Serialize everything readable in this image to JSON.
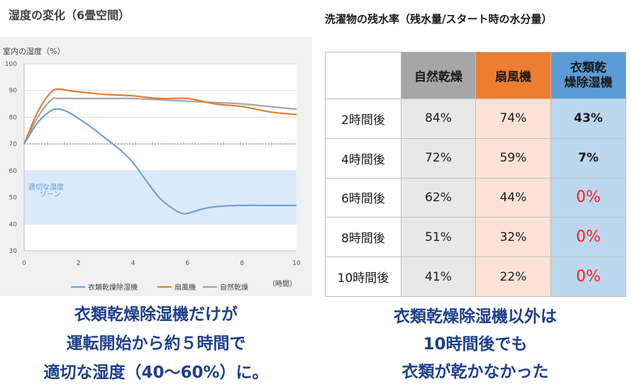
{
  "left_title": "湿度の変化（6畳空間）",
  "chart_data": {
    "type": "line",
    "ylabel": "室内の湿度（%）",
    "xlabel": "（時間）",
    "xlim": [
      0,
      10
    ],
    "ylim": [
      30,
      100
    ],
    "xticks": [
      0,
      2,
      4,
      6,
      8,
      10
    ],
    "yticks": [
      30,
      40,
      50,
      60,
      70,
      80,
      90,
      100
    ],
    "reference_line": 70,
    "band": {
      "from": 40,
      "to": 60,
      "label_line1": "適切な湿度",
      "label_line2": "ゾーン"
    },
    "series": [
      {
        "name": "衣類乾燥除湿機",
        "color": "#6fa3d6",
        "points": [
          [
            0,
            70
          ],
          [
            0.5,
            78
          ],
          [
            1,
            82.5
          ],
          [
            1.3,
            83
          ],
          [
            1.6,
            82
          ],
          [
            2,
            79.5
          ],
          [
            2.5,
            76
          ],
          [
            3,
            72
          ],
          [
            3.5,
            68
          ],
          [
            4,
            63
          ],
          [
            4.5,
            56
          ],
          [
            5,
            49.5
          ],
          [
            5.5,
            45.5
          ],
          [
            5.8,
            44
          ],
          [
            6,
            44
          ],
          [
            6.5,
            45.5
          ],
          [
            7,
            46.5
          ],
          [
            8,
            47
          ],
          [
            9,
            47
          ],
          [
            10,
            47
          ]
        ]
      },
      {
        "name": "扇風機",
        "color": "#e67d33",
        "points": [
          [
            0,
            70
          ],
          [
            0.5,
            82
          ],
          [
            1,
            89.5
          ],
          [
            1.3,
            90.5
          ],
          [
            1.6,
            90
          ],
          [
            2,
            89.5
          ],
          [
            3,
            88.5
          ],
          [
            4,
            88
          ],
          [
            5,
            87
          ],
          [
            6,
            87
          ],
          [
            7,
            85
          ],
          [
            8,
            84
          ],
          [
            9,
            82
          ],
          [
            10,
            81
          ]
        ]
      },
      {
        "name": "自然乾燥",
        "color": "#a5a5a5",
        "points": [
          [
            0,
            70
          ],
          [
            0.5,
            80
          ],
          [
            1,
            86.5
          ],
          [
            1.3,
            87
          ],
          [
            2,
            87
          ],
          [
            3,
            87
          ],
          [
            4,
            87
          ],
          [
            5,
            86.5
          ],
          [
            6,
            86
          ],
          [
            7,
            85.5
          ],
          [
            8,
            85
          ],
          [
            9,
            84
          ],
          [
            10,
            83
          ]
        ]
      }
    ]
  },
  "right_title": "洗濯物の残水率（残水量/スタート時の水分量）",
  "table": {
    "headers": [
      {
        "line1": "自然乾燥",
        "line2": ""
      },
      {
        "line1": "扇風機",
        "line2": ""
      },
      {
        "line1": "衣類乾",
        "line2": "燥除湿機"
      }
    ],
    "rows": [
      {
        "label": "2時間後",
        "natural": "84%",
        "fan": "74%",
        "dehum": "43%"
      },
      {
        "label": "4時間後",
        "natural": "72%",
        "fan": "59%",
        "dehum": "7%"
      },
      {
        "label": "6時間後",
        "natural": "62%",
        "fan": "44%",
        "dehum": "0%"
      },
      {
        "label": "8時間後",
        "natural": "51%",
        "fan": "32%",
        "dehum": "0%"
      },
      {
        "label": "10時間後",
        "natural": "41%",
        "fan": "22%",
        "dehum": "0%"
      }
    ]
  },
  "conclusion_left": [
    "衣類乾燥除湿機だけが",
    "運転開始から約５時間で",
    "適切な湿度（40〜60%）に。"
  ],
  "conclusion_right": [
    "衣類乾燥除湿機以外は",
    "10時間後でも",
    "衣類が乾かなかった"
  ]
}
